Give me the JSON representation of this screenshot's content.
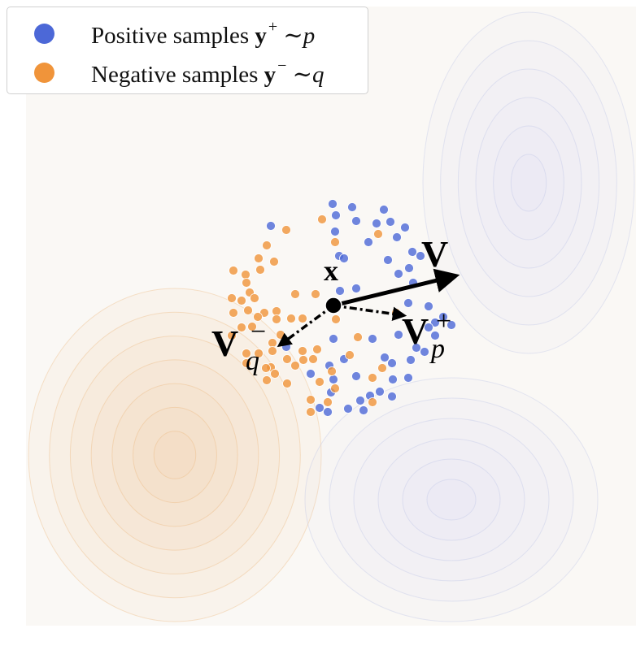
{
  "legend": {
    "positive": {
      "text": "Positive samples",
      "var": "y",
      "sup": "+",
      "rel": "∼",
      "dist": "p",
      "color": "#4c68d7"
    },
    "negative": {
      "text": "Negative samples",
      "var": "y",
      "sup": "−",
      "rel": "∼",
      "dist": "q",
      "color": "#f0943a"
    }
  },
  "labels": {
    "x": "x",
    "v": "V",
    "vp": {
      "main": "V",
      "sup": "+",
      "sub": "p"
    },
    "vq": {
      "main": "V",
      "sup": "−",
      "sub": "q"
    }
  },
  "chart_data": {
    "type": "scatter",
    "grid": false,
    "legend_position": "top-left",
    "anchor_point": {
      "name": "x",
      "x": 0,
      "y": 0
    },
    "vectors": [
      {
        "label": "V",
        "to": [
          1.48,
          0.36
        ],
        "style": "solid"
      },
      {
        "label": "V_p^+",
        "to": [
          0.85,
          -0.12
        ],
        "style": "dashed"
      },
      {
        "label": "V_q^-",
        "to": [
          -0.65,
          -0.48
        ],
        "style": "dashed"
      }
    ],
    "series": [
      {
        "name": "Positive samples y+ ∼ p",
        "color": "#4c68d7",
        "points": [
          [
            -0.01,
            1.25
          ],
          [
            0.23,
            1.21
          ],
          [
            0.03,
            1.11
          ],
          [
            0.28,
            1.04
          ],
          [
            0.62,
            1.18
          ],
          [
            0.7,
            1.03
          ],
          [
            0.88,
            0.96
          ],
          [
            0.53,
            1.01
          ],
          [
            0.78,
            0.84
          ],
          [
            0.43,
            0.78
          ],
          [
            -0.77,
            0.98
          ],
          [
            0.02,
            0.91
          ],
          [
            0.07,
            0.61
          ],
          [
            0.13,
            0.58
          ],
          [
            0.67,
            0.56
          ],
          [
            0.97,
            0.66
          ],
          [
            1.07,
            0.61
          ],
          [
            0.93,
            0.46
          ],
          [
            0.8,
            0.39
          ],
          [
            0.98,
            0.28
          ],
          [
            0.08,
            0.18
          ],
          [
            0.28,
            0.21
          ],
          [
            0.92,
            0.03
          ],
          [
            1.17,
            -0.01
          ],
          [
            1.25,
            -0.21
          ],
          [
            1.17,
            -0.27
          ],
          [
            1.25,
            -0.37
          ],
          [
            0.8,
            -0.36
          ],
          [
            0.48,
            -0.41
          ],
          [
            0.0,
            -0.41
          ],
          [
            1.02,
            -0.52
          ],
          [
            1.12,
            -0.57
          ],
          [
            -0.58,
            -0.51
          ],
          [
            0.13,
            -0.66
          ],
          [
            0.63,
            -0.64
          ],
          [
            0.72,
            -0.71
          ],
          [
            0.95,
            -0.67
          ],
          [
            -0.05,
            -0.74
          ],
          [
            0.28,
            -0.87
          ],
          [
            -0.28,
            -0.84
          ],
          [
            0.0,
            -0.91
          ],
          [
            0.73,
            -0.91
          ],
          [
            0.92,
            -0.89
          ],
          [
            0.57,
            -1.06
          ],
          [
            0.72,
            -1.12
          ],
          [
            0.45,
            -1.11
          ],
          [
            0.33,
            -1.17
          ],
          [
            0.18,
            -1.27
          ],
          [
            0.37,
            -1.29
          ],
          [
            -0.03,
            -1.07
          ],
          [
            -0.17,
            -1.26
          ],
          [
            -0.07,
            -1.31
          ],
          [
            1.35,
            -0.14
          ],
          [
            1.45,
            -0.24
          ]
        ]
      },
      {
        "name": "Negative samples y− ∼ q",
        "color": "#f0943a",
        "points": [
          [
            -0.14,
            1.06
          ],
          [
            -0.58,
            0.93
          ],
          [
            0.02,
            0.78
          ],
          [
            -0.82,
            0.74
          ],
          [
            -0.92,
            0.58
          ],
          [
            -0.73,
            0.54
          ],
          [
            -0.9,
            0.44
          ],
          [
            -1.23,
            0.43
          ],
          [
            -1.08,
            0.38
          ],
          [
            -1.07,
            0.28
          ],
          [
            -1.03,
            0.16
          ],
          [
            -1.25,
            0.09
          ],
          [
            -1.13,
            0.06
          ],
          [
            -0.97,
            0.09
          ],
          [
            -1.05,
            -0.06
          ],
          [
            -1.23,
            -0.09
          ],
          [
            -0.85,
            -0.09
          ],
          [
            -0.7,
            -0.07
          ],
          [
            -0.93,
            -0.14
          ],
          [
            -0.7,
            -0.17
          ],
          [
            -0.52,
            -0.16
          ],
          [
            -0.38,
            -0.16
          ],
          [
            -0.47,
            0.14
          ],
          [
            -0.22,
            0.14
          ],
          [
            0.03,
            -0.17
          ],
          [
            -1.0,
            -0.26
          ],
          [
            -1.13,
            -0.27
          ],
          [
            -1.25,
            -0.37
          ],
          [
            -0.65,
            -0.36
          ],
          [
            -0.75,
            -0.46
          ],
          [
            -0.75,
            -0.56
          ],
          [
            -1.07,
            -0.59
          ],
          [
            -0.92,
            -0.59
          ],
          [
            -0.38,
            -0.56
          ],
          [
            -0.2,
            -0.54
          ],
          [
            0.3,
            -0.39
          ],
          [
            0.77,
            -0.09
          ],
          [
            0.55,
            0.88
          ],
          [
            -0.57,
            -0.66
          ],
          [
            -0.47,
            -0.74
          ],
          [
            -0.37,
            -0.67
          ],
          [
            -0.25,
            -0.66
          ],
          [
            -0.77,
            -0.76
          ],
          [
            -1.07,
            -0.71
          ],
          [
            -0.83,
            -0.77
          ],
          [
            -0.72,
            -0.84
          ],
          [
            -0.82,
            -0.92
          ],
          [
            -0.57,
            -0.96
          ],
          [
            -0.17,
            -0.94
          ],
          [
            0.2,
            -0.61
          ],
          [
            0.6,
            -0.77
          ],
          [
            0.48,
            -0.89
          ],
          [
            -0.02,
            -0.81
          ],
          [
            0.02,
            -1.02
          ],
          [
            -0.07,
            -1.19
          ],
          [
            -0.28,
            -1.16
          ],
          [
            -0.28,
            -1.31
          ],
          [
            0.48,
            -1.19
          ]
        ]
      }
    ]
  }
}
